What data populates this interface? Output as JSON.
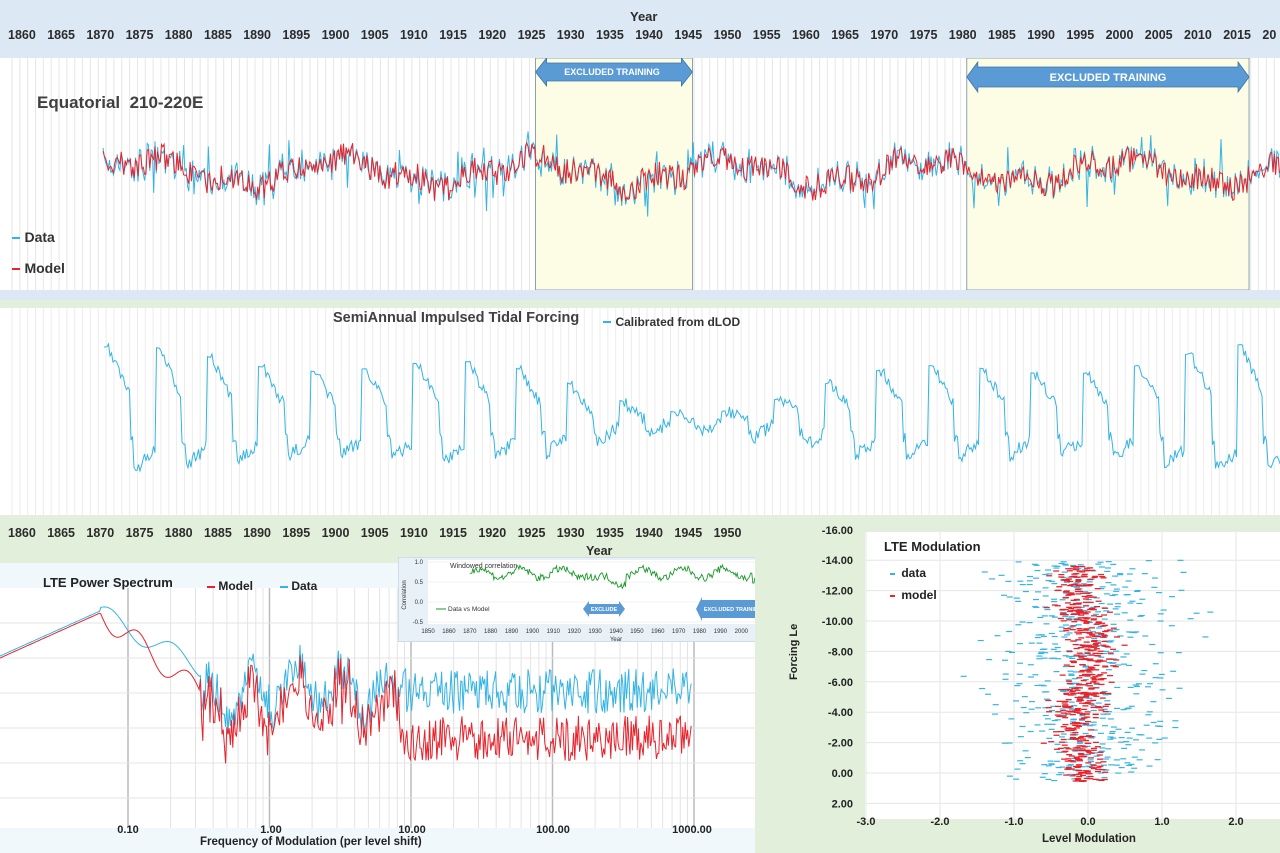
{
  "year_axis": {
    "title": "Year",
    "ticks": [
      "1860",
      "1865",
      "1870",
      "1875",
      "1880",
      "1885",
      "1890",
      "1895",
      "1900",
      "1905",
      "1910",
      "1915",
      "1920",
      "1925",
      "1930",
      "1935",
      "1940",
      "1945",
      "1950",
      "1955",
      "1960",
      "1965",
      "1970",
      "1975",
      "1980",
      "1985",
      "1990",
      "1995",
      "2000",
      "2005",
      "2010",
      "2015",
      "20"
    ],
    "bottom_ticks": [
      "1860",
      "1865",
      "1870",
      "1875",
      "1880",
      "1885",
      "1890",
      "1895",
      "1900",
      "1905",
      "1910",
      "1915",
      "1920",
      "1925",
      "1930",
      "1935",
      "1940",
      "1945",
      "1950"
    ]
  },
  "colors": {
    "data": "#34b4e4",
    "model": "#e8232c",
    "forcing": "#34b4e4",
    "correlation": "#1a9a2a",
    "arrow": "#5b9bd5",
    "excluded_fill": "#fdfde6",
    "band": "#dce9f5",
    "green_band": "#e2efda"
  },
  "chart_data": [
    {
      "type": "line",
      "title": "Equatorial  210-220E",
      "xlabel": "Year",
      "xlim": [
        1858,
        2023
      ],
      "series": [
        {
          "name": "Data",
          "color": "#34b4e4"
        },
        {
          "name": "Model",
          "color": "#e8232c"
        }
      ],
      "excluded_ranges": [
        {
          "label": "EXCLUDED TRAINING",
          "from": 1925,
          "to": 1945
        },
        {
          "label": "EXCLUDED TRAINING",
          "from": 1980,
          "to": 2016
        }
      ]
    },
    {
      "type": "line",
      "title": "SemiAnnual Impulsed Tidal Forcing",
      "series": [
        {
          "name": "Calibrated from dLOD",
          "color": "#34b4e4"
        }
      ]
    },
    {
      "type": "line",
      "title": "LTE Power Spectrum",
      "xlabel": "Frequency of Modulation (per level shift)",
      "x_scale": "log",
      "x_ticks": [
        "0.10",
        "1.00",
        "10.00",
        "100.00",
        "1000.00"
      ],
      "series": [
        {
          "name": "Model",
          "color": "#e8232c"
        },
        {
          "name": "Data",
          "color": "#34b4e4"
        }
      ]
    },
    {
      "type": "line",
      "title": "Windowed correlation",
      "xlabel": "Year",
      "ylabel": "Correlation",
      "x_ticks": [
        "1850",
        "1860",
        "1870",
        "1880",
        "1890",
        "1900",
        "1910",
        "1920",
        "1930",
        "1940",
        "1950",
        "1960",
        "1970",
        "1980",
        "1990",
        "2000",
        "2010",
        "2020",
        "2030"
      ],
      "y_ticks": [
        "1.0",
        "0.5",
        "0.0",
        "-0.5"
      ],
      "ylim": [
        -0.5,
        1.0
      ],
      "series": [
        {
          "name": "Data vs Model",
          "color": "#1a9a2a"
        }
      ],
      "annotations": [
        "EXCLUDE",
        "EXCLUDED TRAINING"
      ]
    },
    {
      "type": "scatter",
      "title": "LTE Modulation",
      "xlabel": "Level Modulation",
      "ylabel": "Forcing Le",
      "x_ticks": [
        "-3.0",
        "-2.0",
        "-1.0",
        "0.0",
        "1.0",
        "2.0"
      ],
      "y_ticks": [
        "-16.00",
        "-14.00",
        "-12.00",
        "-10.00",
        "-8.00",
        "-6.00",
        "-4.00",
        "-2.00",
        "0.00",
        "2.00"
      ],
      "xlim": [
        -3,
        2.5
      ],
      "ylim": [
        2,
        -16
      ],
      "series": [
        {
          "name": "data",
          "color": "#34b4e4"
        },
        {
          "name": "model",
          "color": "#e8232c"
        }
      ]
    }
  ]
}
